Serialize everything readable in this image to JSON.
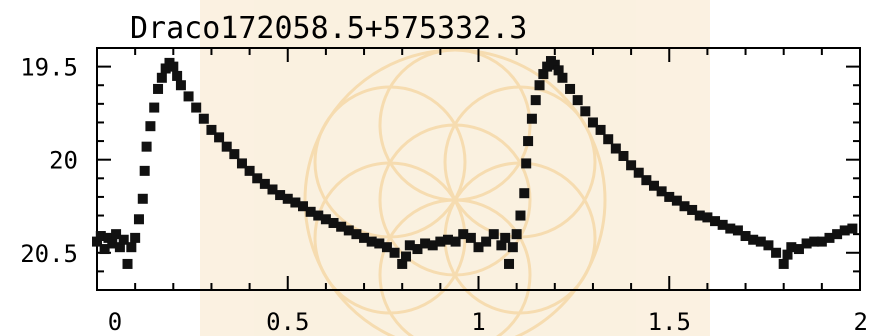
{
  "chart_data": {
    "type": "scatter",
    "title": "Draco172058.5+575332.3",
    "xlabel": "",
    "ylabel": "",
    "xlim": [
      0,
      2
    ],
    "ylim": [
      20.7,
      19.4
    ],
    "y_inverted": true,
    "x_ticks": [
      0,
      0.5,
      1,
      1.5,
      2
    ],
    "x_tick_labels": [
      "0",
      "0.5",
      "1",
      "1.5",
      "2"
    ],
    "y_ticks": [
      19.5,
      20,
      20.5
    ],
    "y_tick_labels": [
      "19.5",
      "20",
      "20.5"
    ],
    "grid": false,
    "marker_color": "#111111",
    "watermark_color": "#f3c98a",
    "series": [
      {
        "values": [
          [
            0.0,
            20.44
          ],
          [
            0.01,
            20.41
          ],
          [
            0.02,
            20.48
          ],
          [
            0.03,
            20.42
          ],
          [
            0.04,
            20.45
          ],
          [
            0.05,
            20.4
          ],
          [
            0.06,
            20.47
          ],
          [
            0.07,
            20.43
          ],
          [
            0.08,
            20.56
          ],
          [
            0.09,
            20.47
          ],
          [
            0.1,
            20.42
          ],
          [
            0.11,
            20.32
          ],
          [
            0.12,
            20.21
          ],
          [
            0.125,
            20.06
          ],
          [
            0.13,
            19.93
          ],
          [
            0.14,
            19.82
          ],
          [
            0.15,
            19.72
          ],
          [
            0.16,
            19.62
          ],
          [
            0.17,
            19.56
          ],
          [
            0.18,
            19.51
          ],
          [
            0.19,
            19.48
          ],
          [
            0.2,
            19.5
          ],
          [
            0.21,
            19.55
          ],
          [
            0.22,
            19.6
          ],
          [
            0.24,
            19.66
          ],
          [
            0.26,
            19.72
          ],
          [
            0.28,
            19.78
          ],
          [
            0.3,
            19.84
          ],
          [
            0.32,
            19.88
          ],
          [
            0.34,
            19.93
          ],
          [
            0.36,
            19.97
          ],
          [
            0.38,
            20.02
          ],
          [
            0.4,
            20.06
          ],
          [
            0.42,
            20.1
          ],
          [
            0.44,
            20.13
          ],
          [
            0.46,
            20.16
          ],
          [
            0.48,
            20.19
          ],
          [
            0.5,
            20.21
          ],
          [
            0.52,
            20.23
          ],
          [
            0.54,
            20.25
          ],
          [
            0.56,
            20.28
          ],
          [
            0.58,
            20.3
          ],
          [
            0.6,
            20.32
          ],
          [
            0.62,
            20.34
          ],
          [
            0.64,
            20.36
          ],
          [
            0.66,
            20.38
          ],
          [
            0.68,
            20.4
          ],
          [
            0.7,
            20.42
          ],
          [
            0.72,
            20.44
          ],
          [
            0.74,
            20.45
          ],
          [
            0.76,
            20.47
          ],
          [
            0.78,
            20.5
          ],
          [
            0.8,
            20.56
          ],
          [
            0.81,
            20.52
          ],
          [
            0.82,
            20.46
          ],
          [
            0.84,
            20.48
          ],
          [
            0.86,
            20.45
          ],
          [
            0.88,
            20.46
          ],
          [
            0.9,
            20.44
          ],
          [
            0.92,
            20.43
          ],
          [
            0.94,
            20.44
          ],
          [
            0.96,
            20.4
          ],
          [
            0.98,
            20.42
          ],
          [
            1.0,
            20.47
          ],
          [
            1.02,
            20.44
          ],
          [
            1.04,
            20.4
          ],
          [
            1.06,
            20.46
          ],
          [
            1.07,
            20.42
          ],
          [
            1.08,
            20.56
          ],
          [
            1.09,
            20.47
          ],
          [
            1.1,
            20.4
          ],
          [
            1.11,
            20.3
          ],
          [
            1.12,
            20.18
          ],
          [
            1.125,
            20.02
          ],
          [
            1.13,
            19.9
          ],
          [
            1.14,
            19.78
          ],
          [
            1.15,
            19.68
          ],
          [
            1.16,
            19.6
          ],
          [
            1.17,
            19.54
          ],
          [
            1.18,
            19.5
          ],
          [
            1.19,
            19.47
          ],
          [
            1.2,
            19.49
          ],
          [
            1.21,
            19.52
          ],
          [
            1.22,
            19.56
          ],
          [
            1.24,
            19.62
          ],
          [
            1.26,
            19.68
          ],
          [
            1.28,
            19.74
          ],
          [
            1.3,
            19.8
          ],
          [
            1.32,
            19.84
          ],
          [
            1.34,
            19.89
          ],
          [
            1.36,
            19.94
          ],
          [
            1.38,
            19.98
          ],
          [
            1.4,
            20.03
          ],
          [
            1.42,
            20.07
          ],
          [
            1.44,
            20.11
          ],
          [
            1.46,
            20.14
          ],
          [
            1.48,
            20.17
          ],
          [
            1.5,
            20.2
          ],
          [
            1.52,
            20.22
          ],
          [
            1.54,
            20.25
          ],
          [
            1.56,
            20.27
          ],
          [
            1.58,
            20.3
          ],
          [
            1.6,
            20.31
          ],
          [
            1.62,
            20.33
          ],
          [
            1.64,
            20.35
          ],
          [
            1.66,
            20.37
          ],
          [
            1.68,
            20.38
          ],
          [
            1.7,
            20.41
          ],
          [
            1.72,
            20.43
          ],
          [
            1.74,
            20.44
          ],
          [
            1.76,
            20.46
          ],
          [
            1.78,
            20.5
          ],
          [
            1.8,
            20.56
          ],
          [
            1.81,
            20.51
          ],
          [
            1.82,
            20.47
          ],
          [
            1.84,
            20.48
          ],
          [
            1.86,
            20.45
          ],
          [
            1.88,
            20.44
          ],
          [
            1.9,
            20.44
          ],
          [
            1.92,
            20.42
          ],
          [
            1.94,
            20.4
          ],
          [
            1.96,
            20.38
          ],
          [
            1.98,
            20.37
          ]
        ]
      }
    ]
  }
}
